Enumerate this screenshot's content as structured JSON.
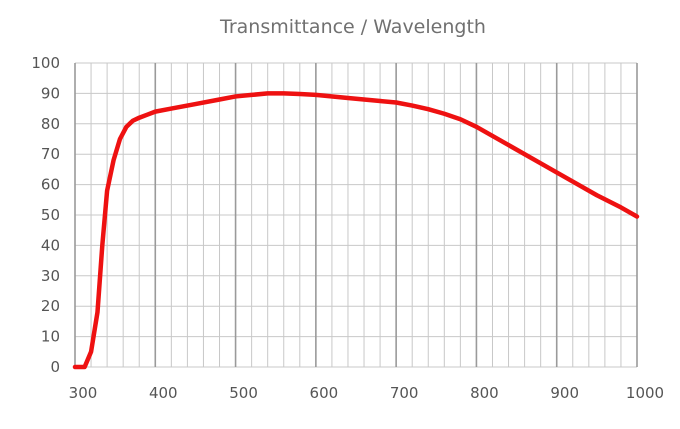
{
  "chart_data": {
    "type": "line",
    "title": "Transmittance / Wavelength",
    "xlabel": "",
    "ylabel": "",
    "xlim": [
      300,
      1000
    ],
    "ylim": [
      0,
      100
    ],
    "x_ticks": [
      300,
      400,
      500,
      600,
      700,
      800,
      900,
      1000
    ],
    "y_ticks": [
      0,
      10,
      20,
      30,
      40,
      50,
      60,
      70,
      80,
      90,
      100
    ],
    "x_minor_step": 20,
    "grid": true,
    "series": [
      {
        "name": "Transmittance",
        "color": "#ee1111",
        "x": [
          300,
          312,
          320,
          328,
          334,
          340,
          348,
          356,
          364,
          372,
          380,
          390,
          400,
          420,
          450,
          480,
          500,
          520,
          540,
          560,
          580,
          600,
          640,
          680,
          700,
          720,
          740,
          760,
          780,
          800,
          820,
          850,
          880,
          900,
          920,
          950,
          980,
          1000
        ],
        "values": [
          0,
          0,
          5,
          18,
          40,
          58,
          68,
          75,
          79,
          81,
          82,
          83,
          84,
          85,
          86.5,
          88,
          89,
          89.5,
          90,
          90,
          89.8,
          89.5,
          88.5,
          87.5,
          87,
          86,
          84.8,
          83.3,
          81.5,
          79,
          76,
          71.5,
          67,
          64,
          61,
          56.5,
          52.5,
          49.5
        ]
      }
    ]
  }
}
